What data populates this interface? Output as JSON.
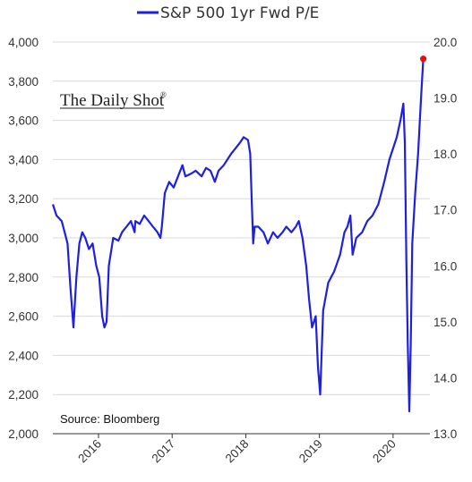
{
  "chart_data": {
    "type": "line",
    "title": "",
    "legend": {
      "label": "S&P 500 1yr Fwd P/E",
      "placement": "top-center"
    },
    "series": [
      {
        "name": "S&P 500 1yr Fwd P/E",
        "color": "#1f1fe0",
        "axis": "right",
        "x": [
          2015.38,
          2015.43,
          2015.5,
          2015.55,
          2015.58,
          2015.62,
          2015.66,
          2015.7,
          2015.74,
          2015.78,
          2015.82,
          2015.87,
          2015.92,
          2015.97,
          2016.01,
          2016.05,
          2016.08,
          2016.11,
          2016.14,
          2016.2,
          2016.27,
          2016.32,
          2016.38,
          2016.44,
          2016.49,
          2016.5,
          2016.56,
          2016.62,
          2016.68,
          2016.74,
          2016.8,
          2016.84,
          2016.86,
          2016.9,
          2016.96,
          2017.02,
          2017.08,
          2017.14,
          2017.18,
          2017.26,
          2017.32,
          2017.4,
          2017.46,
          2017.52,
          2017.58,
          2017.63,
          2017.7,
          2017.75,
          2017.8,
          2017.86,
          2017.92,
          2017.97,
          2018.03,
          2018.06,
          2018.08,
          2018.1,
          2018.12,
          2018.17,
          2018.24,
          2018.3,
          2018.37,
          2018.43,
          2018.5,
          2018.55,
          2018.62,
          2018.68,
          2018.72,
          2018.77,
          2018.82,
          2018.86,
          2018.9,
          2018.95,
          2018.98,
          2019.01,
          2019.05,
          2019.12,
          2019.2,
          2019.28,
          2019.34,
          2019.38,
          2019.42,
          2019.45,
          2019.5,
          2019.58,
          2019.65,
          2019.72,
          2019.8,
          2019.88,
          2019.95,
          2020.05,
          2020.1,
          2020.14,
          2020.16,
          2020.18,
          2020.2,
          2020.22,
          2020.24,
          2020.26,
          2020.3,
          2020.34,
          2020.38,
          2020.41
        ],
        "values": [
          17.1,
          16.9,
          16.8,
          16.55,
          16.4,
          15.6,
          14.9,
          15.8,
          16.4,
          16.6,
          16.5,
          16.3,
          16.4,
          16.0,
          15.8,
          15.1,
          14.9,
          15.0,
          16.0,
          16.5,
          16.45,
          16.6,
          16.7,
          16.8,
          16.6,
          16.8,
          16.75,
          16.9,
          16.8,
          16.7,
          16.6,
          16.5,
          16.7,
          17.3,
          17.5,
          17.4,
          17.6,
          17.8,
          17.6,
          17.65,
          17.7,
          17.6,
          17.75,
          17.7,
          17.5,
          17.7,
          17.8,
          17.9,
          18.0,
          18.1,
          18.2,
          18.3,
          18.25,
          18.0,
          17.2,
          16.4,
          16.7,
          16.7,
          16.6,
          16.4,
          16.6,
          16.5,
          16.6,
          16.7,
          16.6,
          16.7,
          16.8,
          16.5,
          16.0,
          15.4,
          14.9,
          15.1,
          14.2,
          13.7,
          15.2,
          15.7,
          15.9,
          16.2,
          16.6,
          16.7,
          16.9,
          16.2,
          16.5,
          16.6,
          16.8,
          16.9,
          17.1,
          17.5,
          17.9,
          18.3,
          18.6,
          18.9,
          18.2,
          16.1,
          14.6,
          13.4,
          14.6,
          16.4,
          17.3,
          18.0,
          19.0,
          19.7
        ]
      }
    ],
    "highlight": {
      "x": 2020.41,
      "value": 19.7,
      "color": "#e01010"
    },
    "x_axis": {
      "range": [
        2015.38,
        2020.5
      ],
      "ticks": [
        2016,
        2017,
        2018,
        2019,
        2020
      ],
      "tick_labels": [
        "2016",
        "2017",
        "2018",
        "2019",
        "2020"
      ],
      "rotated": true
    },
    "y_left": {
      "range": [
        2000,
        4000
      ],
      "ticks": [
        2000,
        2200,
        2400,
        2600,
        2800,
        3000,
        3200,
        3400,
        3600,
        3800,
        4000
      ],
      "tick_labels": [
        "2,000",
        "2,200",
        "2,400",
        "2,600",
        "2,800",
        "3,000",
        "3,200",
        "3,400",
        "3,600",
        "3,800",
        "4,000"
      ]
    },
    "y_right": {
      "range": [
        13.0,
        20.0
      ],
      "ticks": [
        13,
        14,
        15,
        16,
        17,
        18,
        19,
        20
      ],
      "tick_labels": [
        "13.0",
        "14.0",
        "15.0",
        "16.0",
        "17.0",
        "18.0",
        "19.0",
        "20.0"
      ]
    },
    "grid": {
      "horizontal": true,
      "vertical": false,
      "color": "#d9d9d9"
    },
    "annotations": {
      "brand": "The Daily Shot",
      "brand_mark": "®",
      "source": "Source: Bloomberg"
    }
  }
}
